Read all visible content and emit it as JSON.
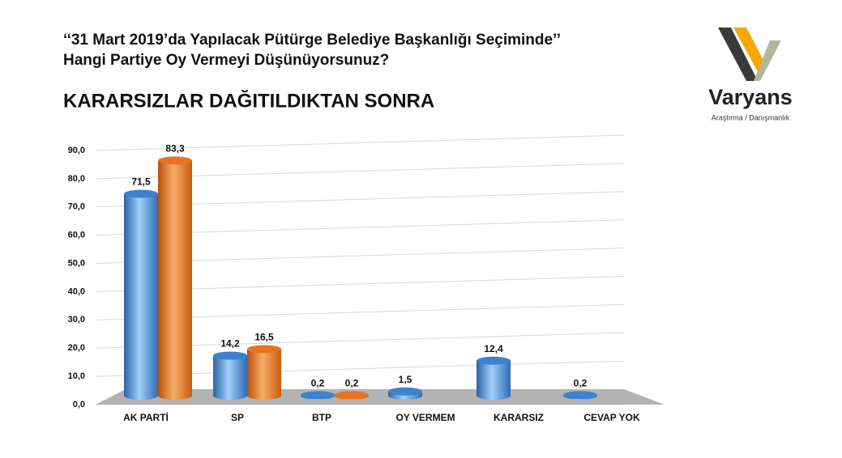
{
  "chart_data": {
    "type": "bar",
    "title": [
      "‘‘31 Mart 2019’da Yapılacak Pütürge Belediye Başkanlığı Seçiminde’’",
      "Hangi Partiye Oy Vermeyi Düşünüyorsunuz?"
    ],
    "subtitle": "KARARSIZLAR DAĞITILDIKTAN SONRA",
    "categories": [
      "AK PARTİ",
      "SP",
      "BTP",
      "OY VERMEM",
      "KARARSIZ",
      "CEVAP YOK"
    ],
    "series": [
      {
        "color": "#3d82d0",
        "values": [
          71.5,
          14.2,
          0.2,
          1.5,
          12.4,
          0.2
        ],
        "value_labels": [
          "71,5",
          "14,2",
          "0,2",
          "1,5",
          "12,4",
          "0,2"
        ]
      },
      {
        "color": "#e8731e",
        "values": [
          83.3,
          16.5,
          0.2,
          null,
          null,
          null
        ],
        "value_labels": [
          "83,3",
          "16,5",
          "0,2",
          null,
          null,
          null
        ]
      }
    ],
    "ylim": [
      0,
      90
    ],
    "yticks": [
      {
        "value": 0,
        "label": "0,0"
      },
      {
        "value": 10,
        "label": "10,0"
      },
      {
        "value": 20,
        "label": "20,0"
      },
      {
        "value": 30,
        "label": "30,0"
      },
      {
        "value": 40,
        "label": "40,0"
      },
      {
        "value": 50,
        "label": "50,0"
      },
      {
        "value": 60,
        "label": "60,0"
      },
      {
        "value": 70,
        "label": "70,0"
      },
      {
        "value": 80,
        "label": "80,0"
      },
      {
        "value": 90,
        "label": "90,0"
      }
    ],
    "grid": true
  },
  "logo": {
    "name": "Varyans",
    "tagline": "Araştırma / Danışmanlık"
  }
}
